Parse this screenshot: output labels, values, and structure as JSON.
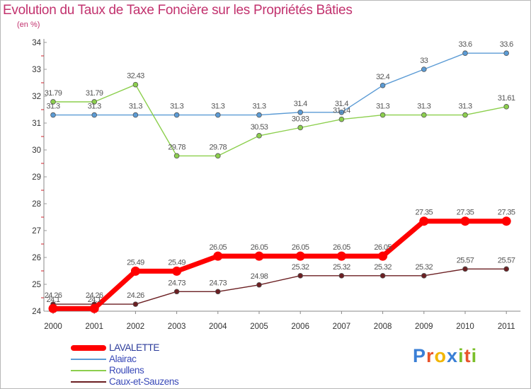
{
  "header": {
    "title": "Evolution du Taux de Taxe Foncière sur les Propriétés Bâties",
    "subtitle": "(en %)"
  },
  "logo": {
    "letters": [
      "P",
      "r",
      "o",
      "x",
      "i",
      "t",
      "i"
    ]
  },
  "colors": {
    "title": "#c2326e",
    "LAVALETTE": "#ff0000",
    "Alairac": "#5b9bd5",
    "Roullens": "#8ccf4d",
    "Caux-et-Sauzens": "#6b1f22",
    "logo": [
      "#3a7fd6",
      "#e8532b",
      "#f2b600",
      "#3a7fd6",
      "#7bbf2a",
      "#e8532b",
      "#7bbf2a"
    ]
  },
  "chart_data": {
    "type": "line",
    "title": "Evolution du Taux de Taxe Foncière sur les Propriétés Bâties",
    "ylabel": "(en %)",
    "xlabel": "",
    "x": [
      "2000",
      "2001",
      "2002",
      "2003",
      "2004",
      "2005",
      "2006",
      "2007",
      "2008",
      "2009",
      "2010",
      "2011"
    ],
    "ylim": [
      24,
      34
    ],
    "yticks": [
      24,
      25,
      26,
      27,
      28,
      29,
      30,
      31,
      32,
      33,
      34
    ],
    "grid": false,
    "legend_position": "bottom-left",
    "series": [
      {
        "name": "LAVALETTE",
        "values": [
          24.1,
          24.1,
          25.49,
          25.49,
          26.05,
          26.05,
          26.05,
          26.05,
          26.05,
          27.35,
          27.35,
          27.35
        ],
        "labels": [
          "24.1",
          "24.1",
          "25.49",
          "25.49",
          "26.05",
          "26.05",
          "26.05",
          "26.05",
          "26.05",
          "27.35",
          "27.35",
          "27.35"
        ]
      },
      {
        "name": "Alairac",
        "values": [
          31.3,
          31.3,
          31.3,
          31.3,
          31.3,
          31.3,
          31.4,
          31.4,
          32.4,
          33,
          33.6,
          33.6
        ],
        "labels": [
          "31.3",
          "31.3",
          "31.3",
          "31.3",
          "31.3",
          "31.3",
          "31.4",
          "31.4",
          "32.4",
          "33",
          "33.6",
          "33.6"
        ]
      },
      {
        "name": "Roullens",
        "values": [
          31.79,
          31.79,
          32.43,
          29.78,
          29.78,
          30.53,
          30.83,
          31.14,
          31.3,
          31.3,
          31.3,
          31.61
        ],
        "labels": [
          "31.79",
          "31.79",
          "32.43",
          "29.78",
          "29.78",
          "30.53",
          "30.83",
          "31.14",
          "31.3",
          "31.3",
          "31.3",
          "31.61"
        ]
      },
      {
        "name": "Caux-et-Sauzens",
        "values": [
          24.26,
          24.26,
          24.26,
          24.73,
          24.73,
          24.98,
          25.32,
          25.32,
          25.32,
          25.32,
          25.57,
          25.57
        ],
        "labels": [
          "24.26",
          "24.26",
          "24.26",
          "24.73",
          "24.73",
          "24.98",
          "25.32",
          "25.32",
          "25.32",
          "25.32",
          "25.57",
          "25.57"
        ]
      }
    ]
  }
}
